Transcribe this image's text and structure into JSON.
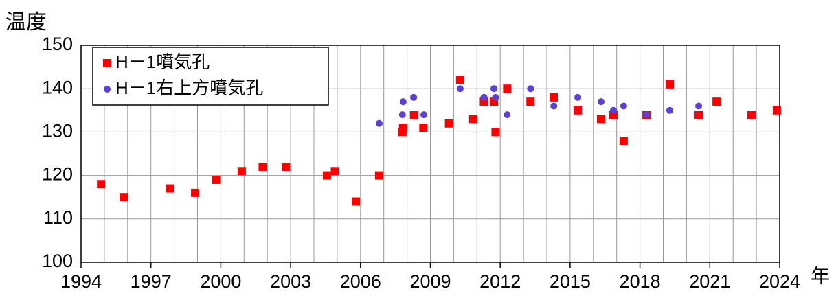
{
  "chart_data": {
    "type": "scatter",
    "y_label": "温度",
    "x_label": "年",
    "xlim": [
      1994,
      2024
    ],
    "xticks": [
      1994,
      1997,
      2000,
      2003,
      2006,
      2009,
      2012,
      2015,
      2018,
      2021,
      2024
    ],
    "xgrid_step": 1,
    "ylim": [
      100,
      150
    ],
    "yticks": [
      100,
      110,
      120,
      130,
      140,
      150
    ],
    "grid": true,
    "legend": "upper left",
    "series": [
      {
        "name": "H－1噴気孔",
        "color": "#ff0000",
        "marker": "square",
        "x": [
          1994.86,
          1995.83,
          1997.83,
          1998.9,
          1999.8,
          2000.9,
          2001.8,
          2002.8,
          2004.56,
          2004.9,
          2005.8,
          2006.8,
          2007.8,
          2007.83,
          2008.3,
          2008.7,
          2009.8,
          2010.28,
          2010.84,
          2011.3,
          2011.73,
          2011.8,
          2012.3,
          2013.3,
          2014.3,
          2015.33,
          2016.33,
          2016.86,
          2017.3,
          2018.28,
          2019.28,
          2020.52,
          2021.29,
          2022.79,
          2023.88
        ],
        "values": [
          118,
          115,
          117,
          116,
          119,
          121,
          122,
          122,
          120,
          121,
          114,
          120,
          130,
          131,
          134,
          131,
          132,
          142,
          133,
          137,
          137,
          130,
          140,
          137,
          138,
          135,
          133,
          134,
          128,
          134,
          141,
          134,
          137,
          134,
          135
        ]
      },
      {
        "name": "H－1右上方噴気孔",
        "color": "#5b3fd6",
        "marker": "circle",
        "x": [
          2006.8,
          2007.8,
          2007.83,
          2008.28,
          2008.72,
          2010.28,
          2011.3,
          2011.73,
          2011.8,
          2012.3,
          2013.3,
          2014.3,
          2015.33,
          2016.33,
          2016.86,
          2017.3,
          2018.28,
          2019.28,
          2020.52
        ],
        "values": [
          132,
          134,
          137,
          138,
          134,
          140,
          138,
          140,
          138,
          134,
          140,
          136,
          138,
          137,
          135,
          136,
          134,
          135,
          136
        ]
      }
    ]
  }
}
